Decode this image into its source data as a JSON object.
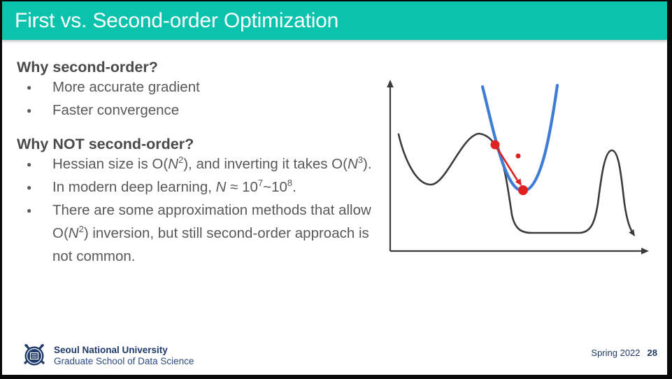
{
  "theme": {
    "header_bg": "#0BC2AC",
    "title_color": "#FFFFFF",
    "heading_color": "#4A4A4A",
    "body_color": "#595959",
    "footer_navy": "#1E3A68",
    "axis_color": "#3B3B3B",
    "loss_curve_color": "#3B3B3B",
    "approx_curve_color": "#3E7CD6",
    "step_color": "#E02121"
  },
  "header": {
    "title": "First vs. Second-order Optimization"
  },
  "sections": [
    {
      "heading": "Why second-order?",
      "bullets": [
        [
          {
            "t": "More accurate gradient"
          }
        ],
        [
          {
            "t": "Faster convergence"
          }
        ]
      ]
    },
    {
      "heading": "Why NOT second-order?",
      "bullets": [
        [
          {
            "t": "Hessian size is O("
          },
          {
            "t": "N",
            "i": true
          },
          {
            "t": "2",
            "sup": true
          },
          {
            "t": "), and inverting it takes O("
          },
          {
            "t": "N",
            "i": true
          },
          {
            "t": "3",
            "sup": true
          },
          {
            "t": ")."
          }
        ],
        [
          {
            "t": "In modern deep learning, "
          },
          {
            "t": "N",
            "i": true
          },
          {
            "t": " ≈ 10"
          },
          {
            "t": "7",
            "sup": true
          },
          {
            "t": "~10"
          },
          {
            "t": "8",
            "sup": true
          },
          {
            "t": "."
          }
        ],
        [
          {
            "t": "There are some approximation methods that allow O("
          },
          {
            "t": "N",
            "i": true
          },
          {
            "t": "2",
            "sup": true
          },
          {
            "t": ") inversion, but still second-order approach is not common."
          }
        ]
      ]
    }
  ],
  "diagram": {
    "loss_curve_color": "#3B3B3B",
    "quadratic_approximation_color": "#3E7CD6",
    "newton_step_color": "#E02121"
  },
  "footer": {
    "university": "Seoul National University",
    "school": "Graduate School of Data Science",
    "term": "Spring 2022",
    "page": "28"
  }
}
